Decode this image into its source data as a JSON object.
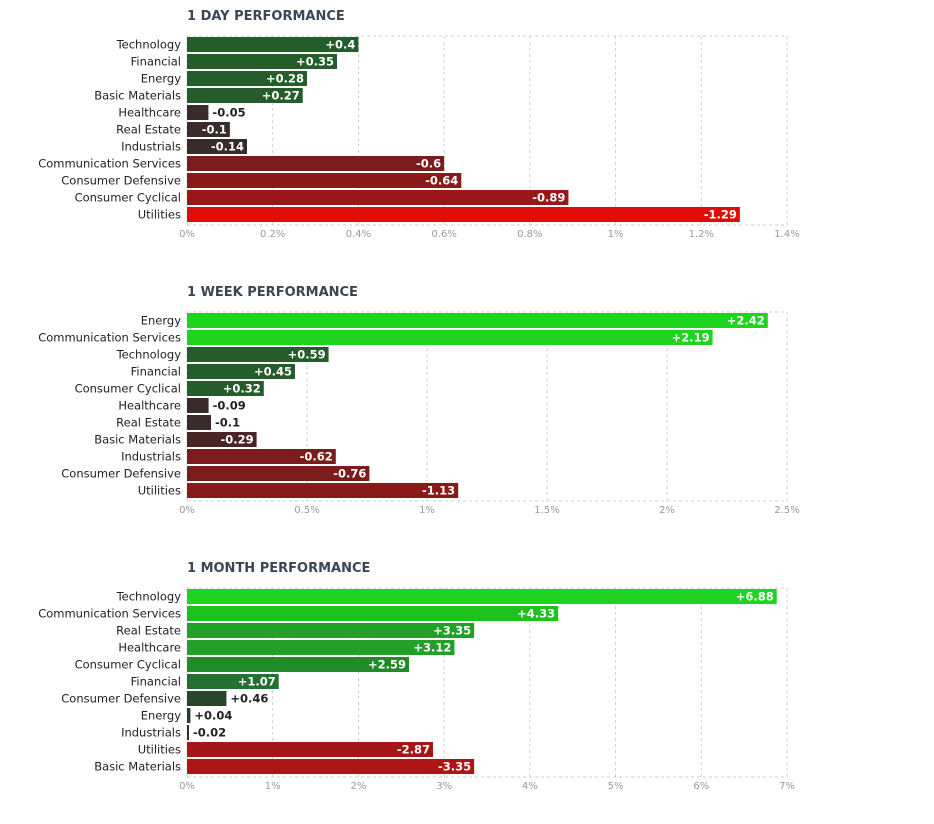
{
  "chart_data": [
    {
      "type": "bar",
      "orientation": "horizontal",
      "title": "1 DAY PERFORMANCE",
      "categories": [
        "Technology",
        "Financial",
        "Energy",
        "Basic Materials",
        "Healthcare",
        "Real Estate",
        "Industrials",
        "Communication Services",
        "Consumer Defensive",
        "Consumer Cyclical",
        "Utilities"
      ],
      "values": [
        0.4,
        0.35,
        0.28,
        0.27,
        -0.05,
        -0.1,
        -0.14,
        -0.6,
        -0.64,
        -0.89,
        -1.29
      ],
      "value_labels": [
        "+0.4",
        "+0.35",
        "+0.28",
        "+0.27",
        "-0.05",
        "-0.1",
        "-0.14",
        "-0.6",
        "-0.64",
        "-0.89",
        "-1.29"
      ],
      "bar_colors": [
        "#245c2a",
        "#245c2a",
        "#245c2a",
        "#245c2a",
        "#3a2b2b",
        "#3a2b2b",
        "#3a2b2b",
        "#7a1c1c",
        "#8a1a1a",
        "#9b1717",
        "#e00b0b"
      ],
      "ticks": [
        "0%",
        "0.2%",
        "0.4%",
        "0.6%",
        "0.8%",
        "1%",
        "1.2%",
        "1.4%"
      ],
      "xlim": [
        0,
        1.4
      ],
      "scale": "absolute value",
      "grid": true
    },
    {
      "type": "bar",
      "orientation": "horizontal",
      "title": "1 WEEK PERFORMANCE",
      "categories": [
        "Energy",
        "Communication Services",
        "Technology",
        "Financial",
        "Consumer Cyclical",
        "Healthcare",
        "Real Estate",
        "Basic Materials",
        "Industrials",
        "Consumer Defensive",
        "Utilities"
      ],
      "values": [
        2.42,
        2.19,
        0.59,
        0.45,
        0.32,
        -0.09,
        -0.1,
        -0.29,
        -0.62,
        -0.76,
        -1.13
      ],
      "value_labels": [
        "+2.42",
        "+2.19",
        "+0.59",
        "+0.45",
        "+0.32",
        "-0.09",
        "-0.1",
        "-0.29",
        "-0.62",
        "-0.76",
        "-1.13"
      ],
      "bar_colors": [
        "#1ed41e",
        "#1ed41e",
        "#245c2a",
        "#245c2a",
        "#245c2a",
        "#3a2b2b",
        "#3a2b2b",
        "#4a2525",
        "#7a1c1c",
        "#7a1c1c",
        "#8a1a1a"
      ],
      "ticks": [
        "0%",
        "0.5%",
        "1%",
        "1.5%",
        "2%",
        "2.5%"
      ],
      "xlim": [
        0,
        2.5
      ],
      "scale": "absolute value",
      "grid": true
    },
    {
      "type": "bar",
      "orientation": "horizontal",
      "title": "1 MONTH PERFORMANCE",
      "categories": [
        "Technology",
        "Communication Services",
        "Real Estate",
        "Healthcare",
        "Consumer Cyclical",
        "Financial",
        "Consumer Defensive",
        "Energy",
        "Industrials",
        "Utilities",
        "Basic Materials"
      ],
      "values": [
        6.88,
        4.33,
        3.35,
        3.12,
        2.59,
        1.07,
        0.46,
        0.04,
        -0.02,
        -2.87,
        -3.35
      ],
      "value_labels": [
        "+6.88",
        "+4.33",
        "+3.35",
        "+3.12",
        "+2.59",
        "+1.07",
        "+0.46",
        "+0.04",
        "-0.02",
        "-2.87",
        "-3.35"
      ],
      "bar_colors": [
        "#1ed41e",
        "#1ec21e",
        "#22a02a",
        "#22a02a",
        "#238a2a",
        "#247030",
        "#28452c",
        "#2e3a30",
        "#3a2b2b",
        "#a51616",
        "#b01414"
      ],
      "ticks": [
        "0%",
        "1%",
        "2%",
        "3%",
        "4%",
        "5%",
        "6%",
        "7%"
      ],
      "xlim": [
        0,
        7
      ],
      "scale": "absolute value",
      "grid": true
    }
  ]
}
